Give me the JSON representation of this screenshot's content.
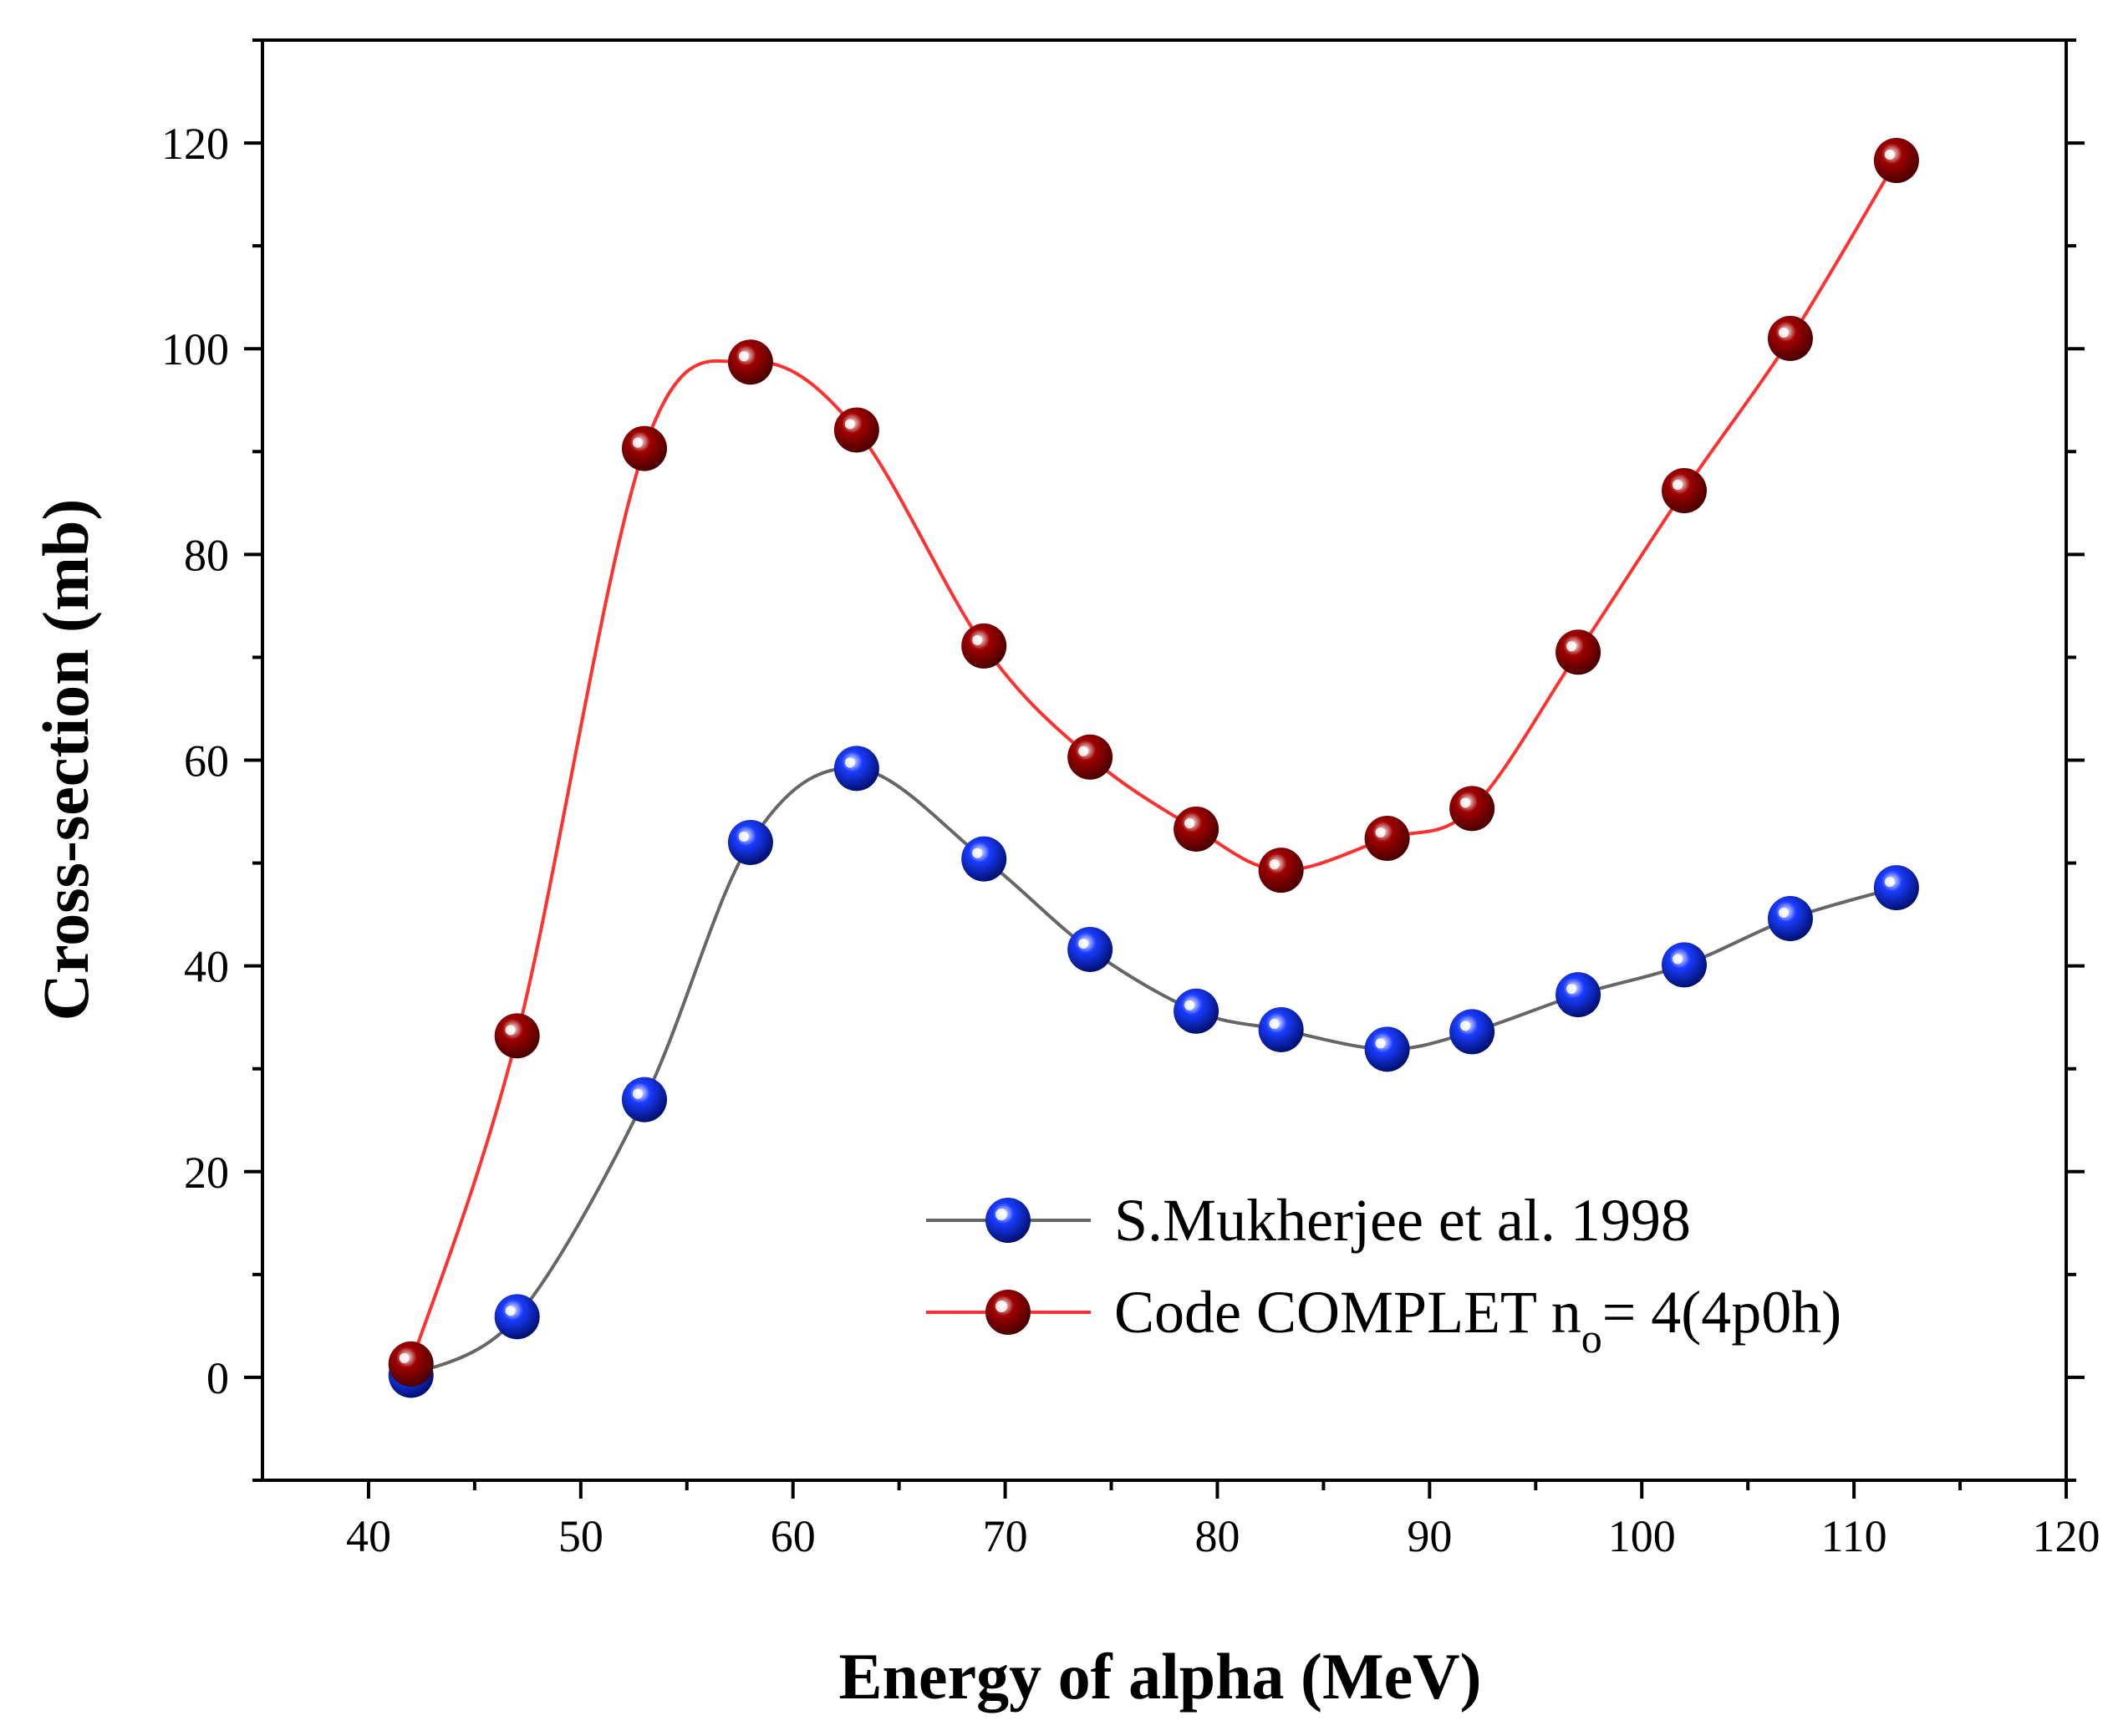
{
  "chart_data": {
    "type": "line",
    "title": "",
    "xlabel": "Energy of alpha (MeV)",
    "ylabel": "Cross-section (mb)",
    "xlim": [
      35,
      120
    ],
    "ylim": [
      -10,
      130
    ],
    "xticks": [
      40,
      50,
      60,
      70,
      80,
      90,
      100,
      110,
      120
    ],
    "yticks": [
      0,
      20,
      40,
      60,
      80,
      100,
      120
    ],
    "x": [
      42,
      47,
      53,
      58,
      63,
      69,
      74,
      79,
      83,
      88,
      92,
      97,
      102,
      107,
      112
    ],
    "series": [
      {
        "name": "S.Mukherjee et al. 1998",
        "line_color": "#666666",
        "marker_color": "#1a3cff",
        "values": [
          0.2,
          5.9,
          27.0,
          52.0,
          59.2,
          50.4,
          41.6,
          35.6,
          33.8,
          31.9,
          33.6,
          37.2,
          40.1,
          44.6,
          47.6
        ]
      },
      {
        "name": "Code COMPLET n",
        "name_subscript": "o",
        "name_suffix": "= 4(4p0h)",
        "line_color": "#ff3030",
        "marker_color": "#a00000",
        "values": [
          1.3,
          33.2,
          90.3,
          98.7,
          92.1,
          71.1,
          60.3,
          53.3,
          49.3,
          52.4,
          55.3,
          70.5,
          86.2,
          101.0,
          118.3
        ]
      }
    ],
    "legend_position": "bottom-right",
    "grid": false
  }
}
